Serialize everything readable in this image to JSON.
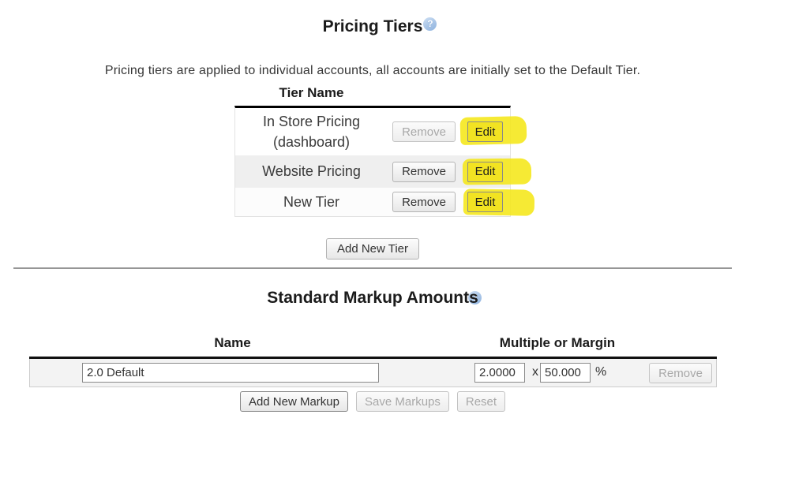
{
  "pricing_tiers": {
    "title": "Pricing Tiers",
    "description": "Pricing tiers are applied to individual accounts, all accounts are initially set to the Default Tier.",
    "table_header": "Tier Name",
    "rows": [
      {
        "name": "In Store Pricing (dashboard)",
        "remove": "Remove",
        "edit": "Edit"
      },
      {
        "name": "Website Pricing",
        "remove": "Remove",
        "edit": "Edit"
      },
      {
        "name": "New Tier",
        "remove": "Remove",
        "edit": "Edit"
      }
    ],
    "add_button": "Add New Tier"
  },
  "markup": {
    "title": "Standard Markup Amounts",
    "name_header": "Name",
    "multiple_header": "Multiple or Margin",
    "row": {
      "name_value": "2.0 Default",
      "multiple_value": "2.0000",
      "times": "x",
      "margin_value": "50.000",
      "percent": "%",
      "remove": "Remove"
    },
    "add_button": "Add New Markup",
    "save_button": "Save Markups",
    "reset_button": "Reset"
  },
  "icons": {
    "help": "?"
  },
  "colors": {
    "highlight_yellow": "#f4e611",
    "help_blue": "#a8c4e6",
    "disabled_text": "#a8a8a8",
    "text": "#333333"
  }
}
